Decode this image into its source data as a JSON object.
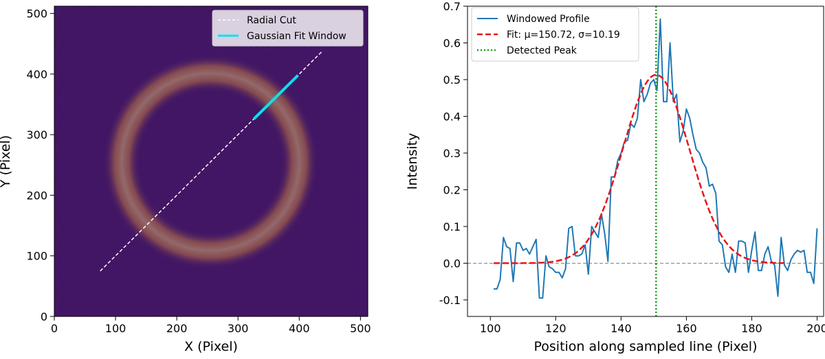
{
  "chart_data": [
    {
      "type": "heatmap",
      "subtype": "image",
      "xlabel": "X (Pixel)",
      "ylabel": "Y (Pixel)",
      "xlim": [
        0,
        512
      ],
      "ylim": [
        0,
        512
      ],
      "x_ticks": [
        0,
        100,
        200,
        300,
        400,
        500
      ],
      "y_ticks": [
        0,
        100,
        200,
        300,
        400,
        500
      ],
      "image": {
        "colormap": "inferno",
        "background_color": "#4a1a6e",
        "ring_color": "#f7a23a",
        "ring_core_color": "#ffd27a",
        "ring_center": [
          255,
          255
        ],
        "ring_radius": 145,
        "ring_width_sigma": 10
      },
      "series": [
        {
          "name": "Radial Cut",
          "style": "dashed",
          "color": "#ffffff",
          "x": [
            75,
            438
          ],
          "y": [
            75,
            438
          ]
        },
        {
          "name": "Gaussian Fit Window",
          "style": "solid",
          "color": "#00e5ee",
          "x": [
            326,
            398
          ],
          "y": [
            326,
            398
          ]
        }
      ],
      "legend": {
        "location": "upper right",
        "entries": [
          "Radial Cut",
          "Gaussian Fit Window"
        ]
      }
    },
    {
      "type": "line",
      "xlabel": "Position along sampled line (Pixel)",
      "ylabel": "Intensity",
      "xlim": [
        93,
        202
      ],
      "ylim": [
        -0.145,
        0.7
      ],
      "x_ticks": [
        100,
        120,
        140,
        160,
        180,
        200
      ],
      "y_ticks": [
        -0.1,
        0.0,
        0.1,
        0.2,
        0.3,
        0.4,
        0.5,
        0.6,
        0.7
      ],
      "baseline": {
        "y": 0.0,
        "color": "#808080",
        "style": "dashed"
      },
      "series": [
        {
          "name": "Windowed Profile",
          "style": "solid",
          "color": "#1f77b4",
          "x": [
            101,
            102,
            103,
            104,
            105,
            106,
            107,
            108,
            109,
            110,
            111,
            112,
            113,
            114,
            115,
            116,
            117,
            118,
            119,
            120,
            121,
            122,
            123,
            124,
            125,
            126,
            127,
            128,
            129,
            130,
            131,
            132,
            133,
            134,
            135,
            136,
            137,
            138,
            139,
            140,
            141,
            142,
            143,
            144,
            145,
            146,
            147,
            148,
            149,
            150,
            151,
            152,
            153,
            154,
            155,
            156,
            157,
            158,
            159,
            160,
            161,
            162,
            163,
            164,
            165,
            166,
            167,
            168,
            169,
            170,
            171,
            172,
            173,
            174,
            175,
            176,
            177,
            178,
            179,
            180,
            181,
            182,
            183,
            184,
            185,
            186,
            187,
            188,
            189,
            190,
            191,
            192,
            193,
            194,
            195,
            196,
            197,
            198,
            199,
            200
          ],
          "y": [
            -0.07,
            -0.07,
            -0.045,
            0.07,
            0.045,
            0.04,
            -0.05,
            0.055,
            0.055,
            0.035,
            0.04,
            0.025,
            0.045,
            0.065,
            -0.095,
            -0.095,
            0.02,
            -0.01,
            -0.015,
            -0.025,
            -0.025,
            -0.04,
            -0.015,
            0.095,
            0.1,
            0.02,
            0.02,
            0.025,
            0.05,
            -0.03,
            0.1,
            0.085,
            0.07,
            0.135,
            0.08,
            0.005,
            0.235,
            0.235,
            0.28,
            0.3,
            0.33,
            0.335,
            0.38,
            0.37,
            0.395,
            0.5,
            0.44,
            0.46,
            0.49,
            0.5,
            0.47,
            0.665,
            0.44,
            0.44,
            0.6,
            0.44,
            0.46,
            0.33,
            0.36,
            0.42,
            0.395,
            0.35,
            0.31,
            0.3,
            0.275,
            0.26,
            0.21,
            0.215,
            0.19,
            0.06,
            0.05,
            -0.01,
            -0.025,
            0.025,
            -0.025,
            0.06,
            0.06,
            0.055,
            -0.025,
            0.035,
            0.085,
            -0.02,
            -0.02,
            0.025,
            0.045,
            0.005,
            -0.005,
            -0.09,
            0.07,
            -0.005,
            -0.02,
            0.01,
            0.025,
            0.035,
            0.03,
            0.035,
            -0.025,
            -0.025,
            -0.055,
            0.095
          ]
        },
        {
          "name": "Fit: μ=150.72, σ=10.19",
          "style": "dashed",
          "color": "#e8141a",
          "gaussian": {
            "amplitude": 0.513,
            "mu": 150.72,
            "sigma": 10.19,
            "x_start": 101,
            "x_end": 190
          }
        },
        {
          "name": "Detected Peak",
          "style": "dotted",
          "color": "#14a014",
          "x": [
            150.72,
            150.72
          ],
          "y": [
            -0.145,
            0.7
          ]
        }
      ],
      "legend": {
        "location": "upper left",
        "entries": [
          "Windowed Profile",
          "Fit: μ=150.72, σ=10.19",
          "Detected Peak"
        ]
      }
    }
  ]
}
